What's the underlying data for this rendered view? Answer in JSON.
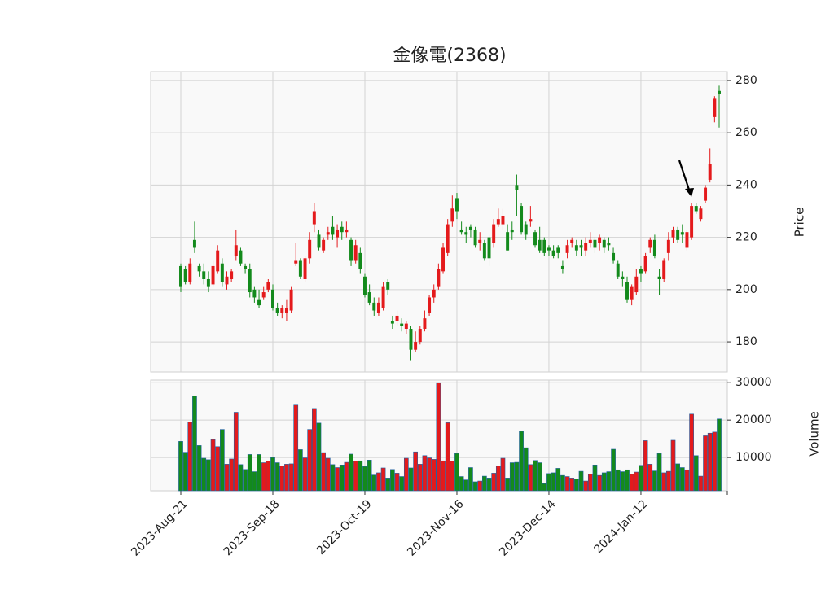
{
  "chart_data": {
    "type": "candlestick",
    "title": "金像電(2368)",
    "ylabel": "Price",
    "y2label": "Volume",
    "up_color": "#e41a1c",
    "down_color": "#138a1c",
    "grid": true,
    "ylim": [
      168.5,
      283.4
    ],
    "yticks": [
      180,
      200,
      220,
      240,
      260,
      280
    ],
    "vlim": [
      1100,
      30700
    ],
    "vticks": [
      10000,
      20000,
      30000
    ],
    "categories": [
      "2023-Aug-21",
      null,
      null,
      null,
      null,
      null,
      null,
      null,
      null,
      null,
      null,
      null,
      null,
      null,
      null,
      null,
      null,
      null,
      null,
      null,
      "2023-Sep-18",
      null,
      null,
      null,
      null,
      null,
      null,
      null,
      null,
      null,
      null,
      null,
      null,
      null,
      null,
      null,
      null,
      null,
      null,
      null,
      "2023-Oct-19",
      null,
      null,
      null,
      null,
      null,
      null,
      null,
      null,
      null,
      null,
      null,
      null,
      null,
      null,
      null,
      null,
      null,
      null,
      null,
      "2023-Nov-16",
      null,
      null,
      null,
      null,
      null,
      null,
      null,
      null,
      null,
      null,
      null,
      null,
      null,
      null,
      null,
      null,
      null,
      null,
      null,
      "2023-Dec-14",
      null,
      null,
      null,
      null,
      null,
      null,
      null,
      null,
      null,
      null,
      null,
      null,
      null,
      null,
      null,
      null,
      null,
      null,
      null,
      "2024-Jan-12",
      null,
      null,
      null,
      null,
      null,
      null,
      null,
      null,
      null,
      null,
      null,
      null,
      null,
      null,
      null,
      null,
      null
    ],
    "open": [
      209,
      208,
      203,
      219,
      209,
      207,
      204,
      202,
      207,
      210,
      202,
      204,
      213,
      215,
      209,
      208,
      200,
      196,
      197,
      200,
      200,
      193,
      191,
      191,
      192,
      210,
      211,
      204,
      212,
      225,
      221,
      215,
      221,
      224,
      220,
      224,
      222,
      219,
      211,
      214,
      205,
      199,
      195,
      191,
      193,
      203,
      188,
      188,
      187,
      185,
      185,
      177,
      180,
      185,
      191,
      197,
      201,
      207,
      214,
      226,
      235,
      223,
      222,
      224,
      223,
      218,
      218,
      220,
      218,
      225,
      225,
      222,
      223,
      240,
      232,
      225,
      226,
      222,
      219,
      219,
      216,
      215,
      216,
      209,
      214,
      218,
      217,
      217,
      215,
      218,
      219,
      218,
      219,
      218,
      214,
      210,
      205,
      203,
      196,
      199,
      208,
      207,
      216,
      219,
      205,
      204,
      214,
      220,
      223,
      222,
      216,
      220,
      232,
      227,
      234,
      242,
      266,
      276
    ],
    "high": [
      210,
      209,
      212,
      226,
      210,
      210,
      207,
      211,
      217,
      212,
      207,
      208,
      223,
      216,
      210,
      210,
      201,
      200,
      201,
      204,
      202,
      195,
      194,
      196,
      201,
      218,
      212,
      213,
      222,
      233,
      223,
      220,
      224,
      228,
      225,
      226,
      226,
      220,
      219,
      216,
      206,
      202,
      197,
      197,
      203,
      204,
      190,
      192,
      189,
      188,
      186,
      184,
      186,
      192,
      198,
      202,
      210,
      218,
      227,
      236,
      237,
      226,
      224,
      225,
      224,
      222,
      219,
      221,
      227,
      231,
      231,
      225,
      226,
      244,
      233,
      226,
      232,
      223,
      224,
      220,
      217,
      217,
      217,
      211,
      219,
      220,
      219,
      219,
      220,
      222,
      220,
      221,
      220,
      220,
      216,
      211,
      207,
      205,
      202,
      208,
      209,
      214,
      220,
      221,
      208,
      212,
      222,
      224,
      224,
      225,
      223,
      233,
      233,
      232,
      240,
      254,
      274,
      278
    ],
    "low": [
      199,
      202,
      202,
      214,
      205,
      202,
      199,
      201,
      206,
      201,
      200,
      203,
      211,
      209,
      206,
      197,
      195,
      193,
      196,
      199,
      192,
      190,
      189,
      188,
      191,
      209,
      204,
      203,
      210,
      222,
      215,
      214,
      219,
      219,
      216,
      219,
      220,
      209,
      210,
      206,
      197,
      194,
      190,
      190,
      192,
      198,
      185,
      186,
      184,
      183,
      173,
      176,
      179,
      184,
      190,
      195,
      200,
      206,
      213,
      224,
      227,
      221,
      218,
      220,
      216,
      215,
      211,
      209,
      216,
      224,
      223,
      215,
      219,
      228,
      221,
      219,
      224,
      216,
      214,
      213,
      213,
      212,
      212,
      206,
      212,
      216,
      213,
      213,
      213,
      216,
      214,
      215,
      214,
      215,
      210,
      204,
      201,
      195,
      194,
      198,
      203,
      206,
      214,
      212,
      198,
      203,
      211,
      218,
      218,
      218,
      215,
      219,
      229,
      226,
      233,
      241,
      264,
      262
    ],
    "close": [
      201,
      203,
      210,
      216,
      207,
      204,
      201,
      209,
      215,
      203,
      205,
      207,
      217,
      210,
      208,
      199,
      197,
      194,
      199,
      203,
      193,
      191,
      193,
      193,
      200,
      211,
      205,
      212,
      219,
      230,
      216,
      219,
      222,
      221,
      223,
      222,
      223,
      211,
      217,
      208,
      198,
      195,
      192,
      195,
      201,
      200,
      187,
      190,
      186,
      187,
      177,
      180,
      185,
      189,
      197,
      200,
      208,
      216,
      225,
      231,
      230,
      222,
      221,
      223,
      217,
      219,
      212,
      212,
      225,
      227,
      228,
      215,
      222,
      238,
      222,
      221,
      227,
      217,
      215,
      214,
      215,
      213,
      214,
      208,
      217,
      219,
      215,
      216,
      218,
      219,
      216,
      220,
      216,
      217,
      211,
      205,
      204,
      196,
      201,
      205,
      206,
      213,
      219,
      213,
      204,
      211,
      219,
      223,
      219,
      221,
      222,
      232,
      230,
      231,
      239,
      248,
      273,
      275
    ],
    "volume": [
      14300,
      11400,
      19500,
      26500,
      13200,
      9800,
      9400,
      14800,
      12900,
      17500,
      8200,
      9600,
      22100,
      8100,
      6800,
      10800,
      6200,
      10800,
      8600,
      9000,
      10000,
      8600,
      7700,
      8200,
      8300,
      24000,
      12100,
      9900,
      17500,
      23100,
      19200,
      11300,
      9800,
      8100,
      7300,
      8000,
      8700,
      10900,
      9000,
      9100,
      7600,
      9300,
      5300,
      5900,
      7200,
      4500,
      6800,
      5800,
      4900,
      9800,
      7200,
      11500,
      8200,
      10500,
      9900,
      9500,
      30000,
      9100,
      19300,
      9000,
      11100,
      4900,
      4000,
      7300,
      3500,
      3700,
      5000,
      4500,
      5800,
      7700,
      9800,
      4500,
      8600,
      8700,
      17000,
      12600,
      8100,
      9200,
      8600,
      3000,
      5700,
      5900,
      7100,
      5200,
      4900,
      4500,
      4300,
      6300,
      3700,
      5600,
      8000,
      5200,
      5900,
      6200,
      12200,
      6700,
      6200,
      6700,
      5500,
      6100,
      7900,
      14500,
      8200,
      6400,
      11100,
      5900,
      6300,
      14600,
      8300,
      7300,
      6700,
      21600,
      10500,
      5000,
      15800,
      16500,
      16800,
      20300
    ]
  }
}
